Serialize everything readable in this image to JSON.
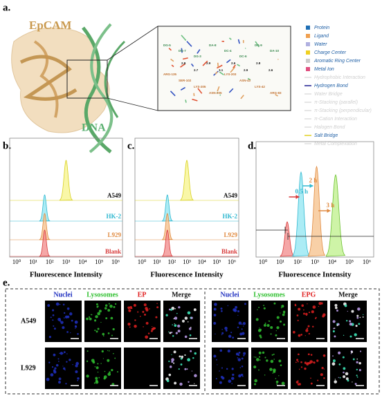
{
  "panel_labels": [
    "a.",
    "b.",
    "c.",
    "d.",
    "e."
  ],
  "a": {
    "protein_label": "EpCAM",
    "dna_label": "DNA",
    "residues": [
      "DG-5",
      "DG-7",
      "DG-3",
      "DA-8",
      "DC-4",
      "DC-6",
      "DG-9",
      "DA-10",
      "ARG-135",
      "SER-102",
      "LYS-205",
      "ASN-205",
      "LYS-203",
      "ASN-43",
      "LYS-42",
      "ARG-83"
    ],
    "distances": [
      "2.8",
      "2.7",
      "2.9",
      "3.1",
      "2.6",
      "2.9",
      "2.8",
      "2.6"
    ],
    "legend": [
      {
        "label": "Protein",
        "color": "#1f6fb5"
      },
      {
        "label": "Ligand",
        "color": "#f0a050"
      },
      {
        "label": "Water",
        "color": "#b0b0e0"
      },
      {
        "label": "Charge Center",
        "color": "#f0d020"
      },
      {
        "label": "Aromatic Ring Center",
        "color": "#cccccc"
      },
      {
        "label": "Metal Ion",
        "color": "#e05080"
      },
      {
        "label": "Hydrophobic Interaction",
        "color": "#dddddd"
      },
      {
        "label": "Hydrogen Bond",
        "color": "#1a1a90"
      },
      {
        "label": "Water Bridge",
        "color": "#dddddd"
      },
      {
        "label": "π-Stacking (parallel)",
        "color": "#dddddd"
      },
      {
        "label": "π-Stacking (perpendicular)",
        "color": "#dddddd"
      },
      {
        "label": "π-Cation Interaction",
        "color": "#dddddd"
      },
      {
        "label": "Halogen Bond",
        "color": "#dddddd"
      },
      {
        "label": "Salt Bridge",
        "color": "#e0d020"
      },
      {
        "label": "Metal Complexation",
        "color": "#dddddd"
      }
    ]
  },
  "b": {
    "samples": [
      "A549",
      "HK-2",
      "L929",
      "Blank"
    ],
    "x_ticks": [
      "10⁰",
      "10¹",
      "10²",
      "10³",
      "10⁴",
      "10⁵",
      "10⁶"
    ],
    "x_label": "Fluorescence Intensity"
  },
  "c": {
    "samples": [
      "A549",
      "HK-2",
      "L929",
      "Blank"
    ],
    "x_ticks": [
      "10⁰",
      "10¹",
      "10²",
      "10³",
      "10⁴",
      "10⁵",
      "10⁶"
    ],
    "x_label": "Fluorescence Intensity"
  },
  "d": {
    "times": [
      "0.5 h",
      "2 h",
      "3 h"
    ],
    "x_ticks": [
      "10⁰",
      "10¹",
      "10²",
      "10³",
      "10⁴",
      "10⁵",
      "10⁶"
    ],
    "x_label": "Fluorescence Intensity"
  },
  "e": {
    "left_headers": [
      "Nuclei",
      "Lysosomes",
      "EP",
      "Merge"
    ],
    "right_headers": [
      "Nuclei",
      "Lysosomes",
      "EPG",
      "Merge"
    ],
    "rows": [
      "A549",
      "L929"
    ]
  }
}
